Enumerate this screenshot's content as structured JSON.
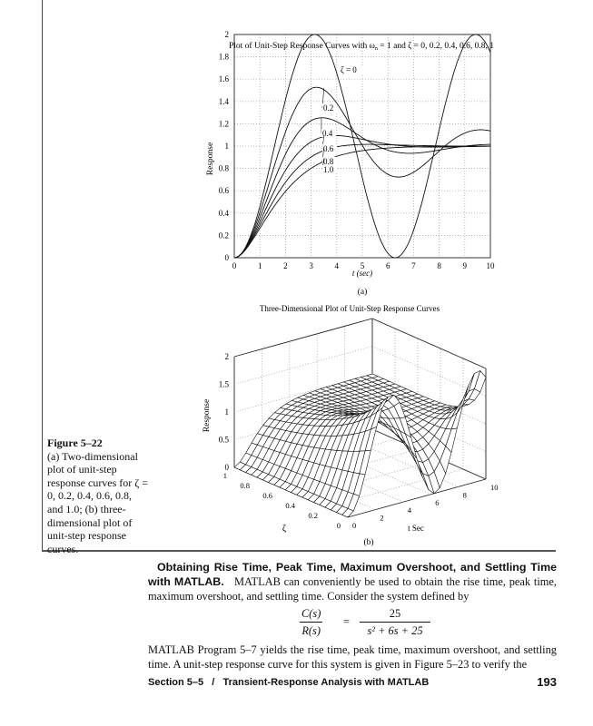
{
  "chart_data": [
    {
      "type": "line",
      "title": "Plot of Unit-Step Response Curves with ω",
      "title_sub": "n",
      "title_tail": " = 1 and ζ = 0, 0.2, 0.4, 0.6, 0.8, 1",
      "xlabel": "t (sec)",
      "ylabel": "Response",
      "xlim": [
        0,
        10
      ],
      "ylim": [
        0,
        2
      ],
      "xticks": [
        "0",
        "1",
        "2",
        "3",
        "4",
        "5",
        "6",
        "7",
        "8",
        "9",
        "10"
      ],
      "yticks": [
        "0",
        "0.2",
        "0.4",
        "0.6",
        "0.8",
        "1",
        "1.2",
        "1.4",
        "1.6",
        "1.8",
        "2"
      ],
      "grid": true,
      "wn": 1,
      "series": [
        {
          "name": "ζ = 0",
          "zeta": 0
        },
        {
          "name": "0.2",
          "zeta": 0.2
        },
        {
          "name": "0.4",
          "zeta": 0.4
        },
        {
          "name": "0.6",
          "zeta": 0.6
        },
        {
          "name": "0.8",
          "zeta": 0.8
        },
        {
          "name": "1.0",
          "zeta": 1.0
        }
      ],
      "panel_label": "(a)"
    },
    {
      "type": "surface",
      "title": "Three-Dimensional Plot of Unit-Step Response Curves",
      "xlabel": "t Sec",
      "ylabel": "ζ",
      "zlabel": "Response",
      "xlim": [
        0,
        10
      ],
      "ylim": [
        0,
        1
      ],
      "zlim": [
        0,
        2
      ],
      "xticks": [
        "0",
        "2",
        "4",
        "6",
        "8",
        "10"
      ],
      "yticks": [
        "0",
        "0.2",
        "0.4",
        "0.6",
        "0.8",
        "1"
      ],
      "zticks": [
        "0",
        "0.5",
        "1",
        "1.5",
        "2"
      ],
      "panel_label": "(b)"
    }
  ],
  "caption": {
    "figure": "Figure 5–22",
    "text": "(a) Two-dimensional plot of unit-step response curves for ζ = 0, 0.2, 0.4, 0.6, 0.8, and 1.0; (b) three-dimensional plot of unit-step response curves."
  },
  "body": {
    "heading": "Obtaining Rise Time, Peak Time, Maximum Overshoot, and Settling Time with MATLAB.",
    "para1": "MATLAB can conveniently be used to obtain the rise time, peak time, maximum overshoot, and settling time. Consider the system defined by",
    "eq_lhs_num": "C(s)",
    "eq_lhs_den": "R(s)",
    "eq_equals": "=",
    "eq_rhs_num": "25",
    "eq_rhs_den": "s² + 6s + 25",
    "para2": "MATLAB Program 5–7 yields the rise time, peak time, maximum overshoot, and settling time. A unit-step response curve for this system is given in Figure 5–23 to verify the"
  },
  "footer": {
    "section": "Section 5–5   /   Transient-Response Analysis with MATLAB",
    "page": "193"
  }
}
